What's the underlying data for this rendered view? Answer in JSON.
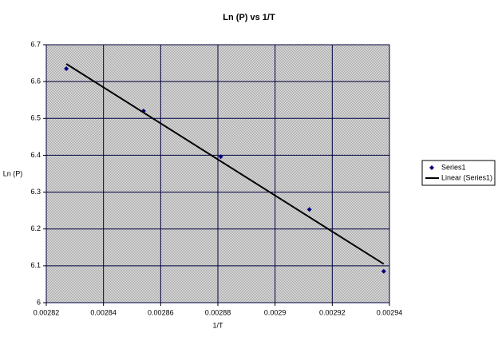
{
  "chart_data": {
    "type": "scatter",
    "title": "Ln (P)  vs  1/T",
    "x_label": "1/T",
    "y_label": "Ln (P)",
    "xlim": [
      0.00282,
      0.00294
    ],
    "xticks": [
      0.00282,
      0.00284,
      0.00286,
      0.00288,
      0.0029,
      0.00292,
      0.00294
    ],
    "ylim": [
      6,
      6.7
    ],
    "yticks": [
      6,
      {
        "value": 6.1,
        "label": "6.1"
      },
      6.2,
      6.3,
      6.4,
      6.5,
      6.6,
      6.7
    ],
    "grid": true,
    "legend": "right",
    "series": [
      {
        "name": "Series1",
        "color": "#000080",
        "mode": "markers",
        "x": [
          0.002827,
          0.002854,
          0.002881,
          0.002912,
          0.002938
        ],
        "values": [
          6.635,
          6.52,
          6.396,
          6.253,
          6.085
        ]
      },
      {
        "name": "Linear (Series1)",
        "color": "#000000",
        "mode": "line",
        "x": [
          0.002827,
          0.002938
        ],
        "values": [
          6.648,
          6.105
        ]
      }
    ]
  }
}
